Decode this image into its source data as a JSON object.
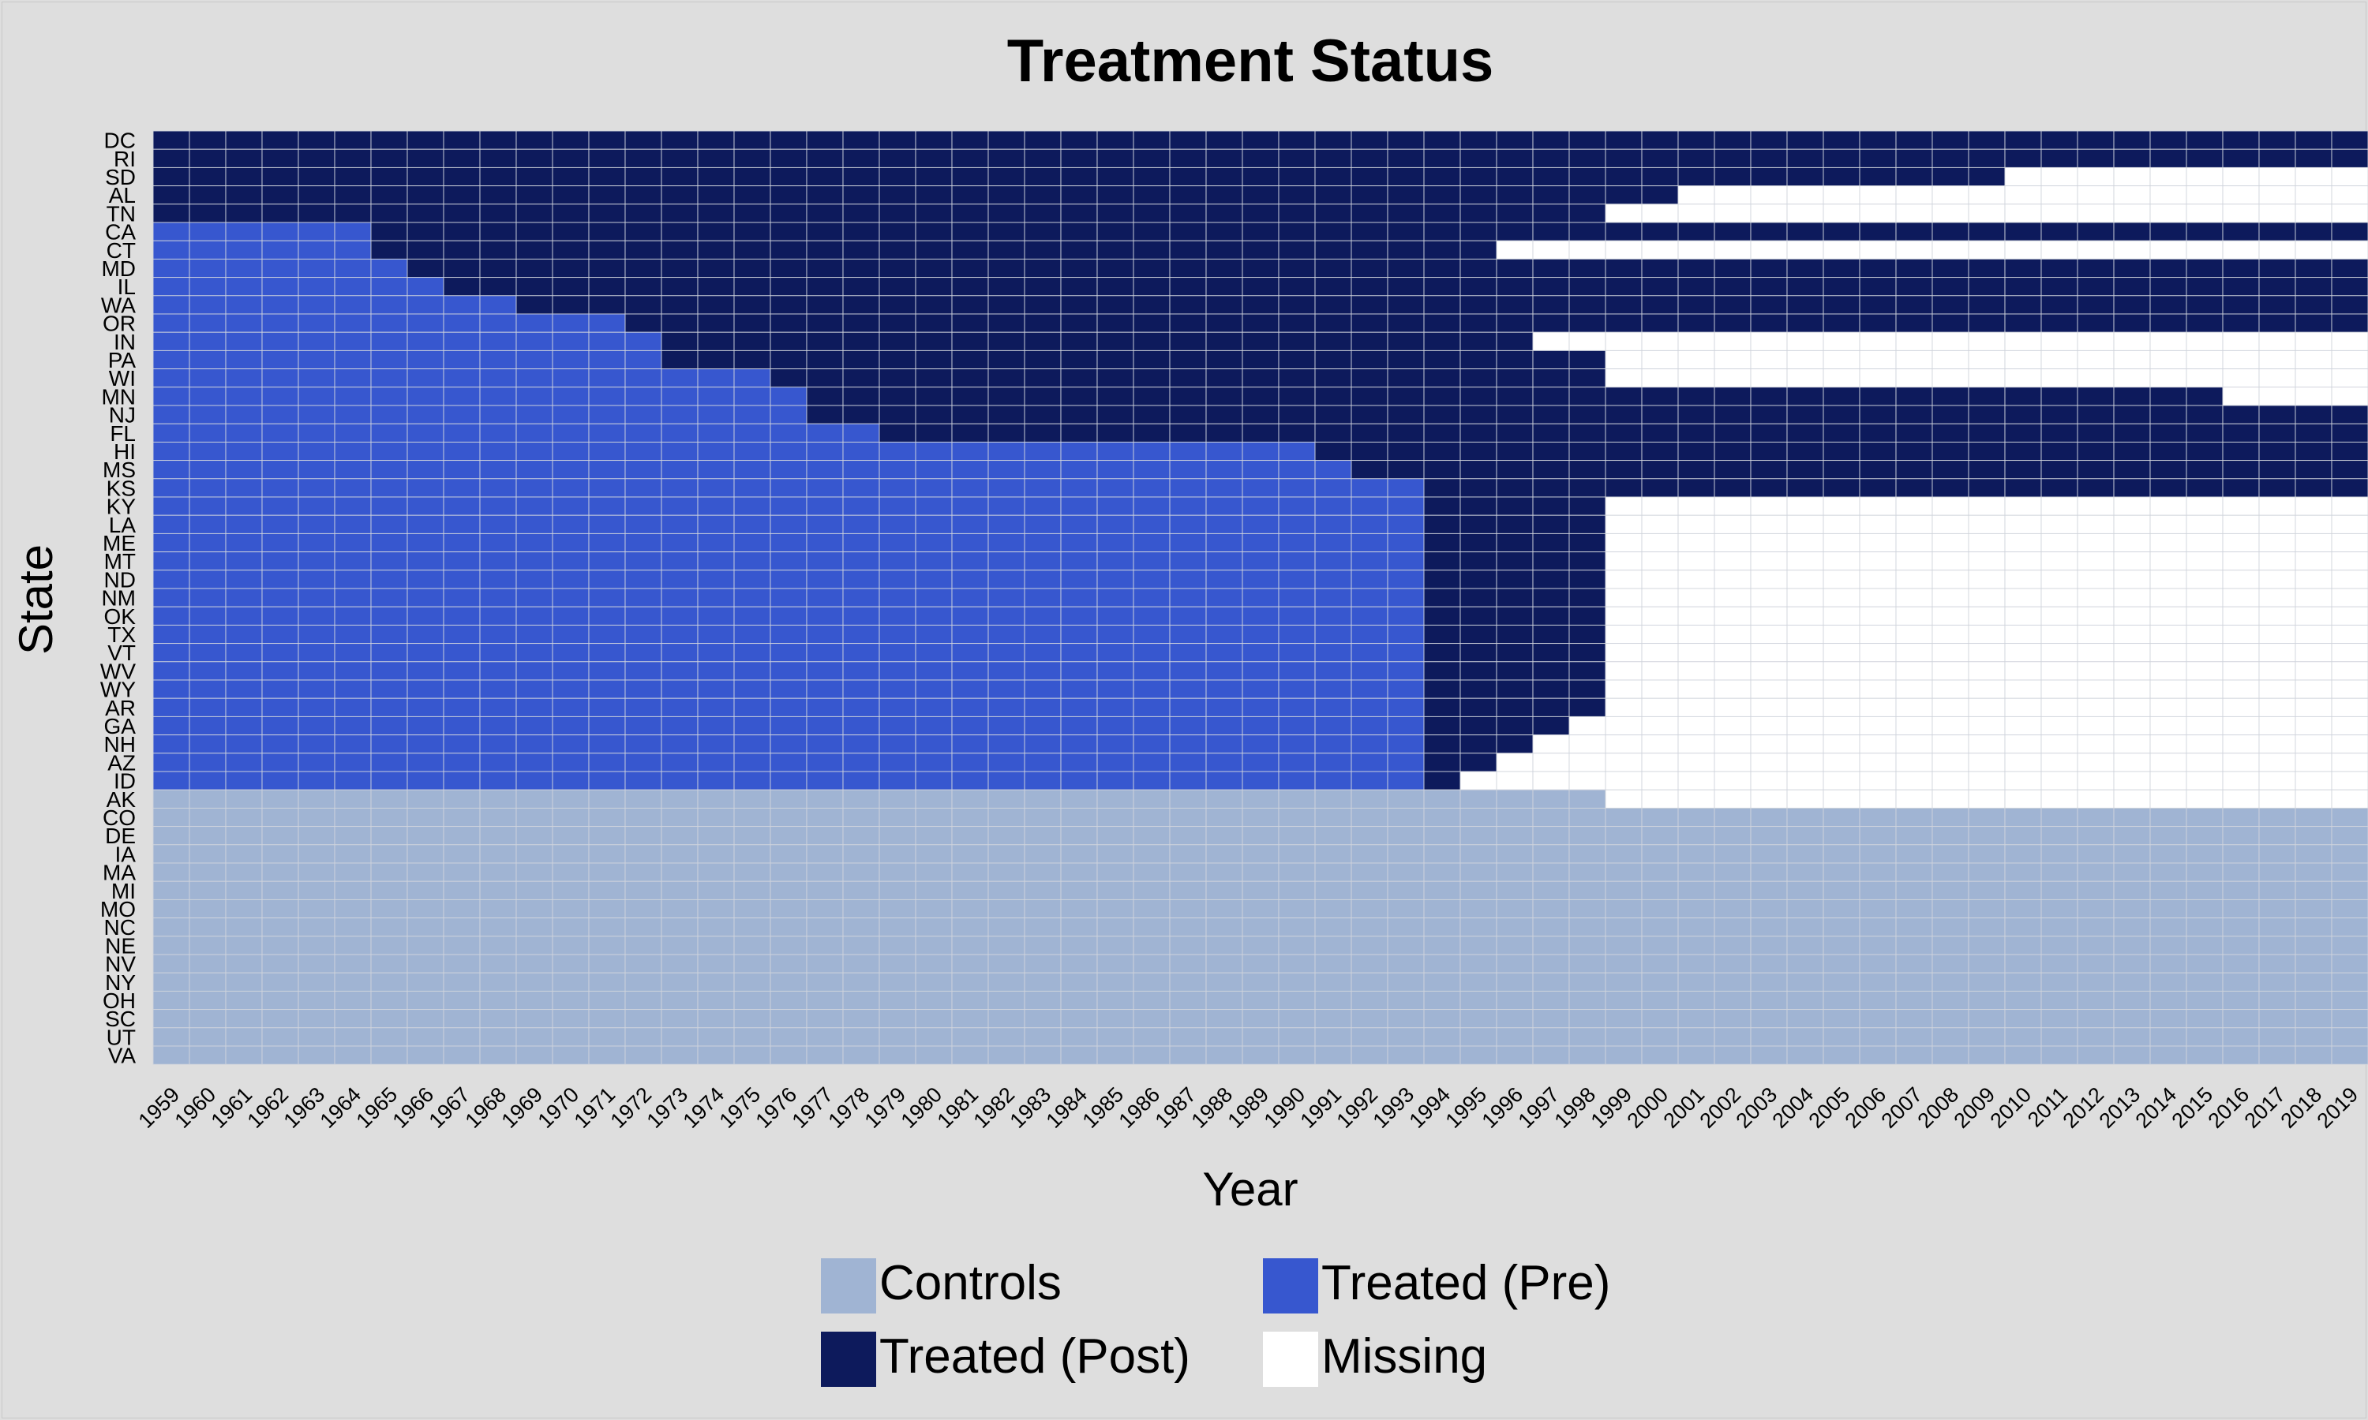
{
  "colors": {
    "controls": "#a0b4d3",
    "treated_pre": "#3757cf",
    "treated_post": "#0d1a5c",
    "missing": "#ffffff",
    "grid": "#d0d4dc",
    "background": "#dedede"
  },
  "chart_data": {
    "type": "heatmap",
    "title": "Treatment Status",
    "xlabel": "Year",
    "ylabel": "State",
    "grid": true,
    "legend_position": "bottom",
    "x_range": [
      1959,
      2019
    ],
    "states": [
      "DC",
      "RI",
      "SD",
      "AL",
      "TN",
      "CA",
      "CT",
      "MD",
      "IL",
      "WA",
      "OR",
      "IN",
      "PA",
      "WI",
      "MN",
      "NJ",
      "FL",
      "HI",
      "MS",
      "KS",
      "KY",
      "LA",
      "ME",
      "MT",
      "ND",
      "NM",
      "OK",
      "TX",
      "VT",
      "WV",
      "WY",
      "AR",
      "GA",
      "NH",
      "AZ",
      "ID",
      "AK",
      "CO",
      "DE",
      "IA",
      "MA",
      "MI",
      "MO",
      "NC",
      "NE",
      "NV",
      "NY",
      "OH",
      "SC",
      "UT",
      "VA"
    ],
    "years": [
      1959,
      1960,
      1961,
      1962,
      1963,
      1964,
      1965,
      1966,
      1967,
      1968,
      1969,
      1970,
      1971,
      1972,
      1973,
      1974,
      1975,
      1976,
      1977,
      1978,
      1979,
      1980,
      1981,
      1982,
      1983,
      1984,
      1985,
      1986,
      1987,
      1988,
      1989,
      1990,
      1991,
      1992,
      1993,
      1994,
      1995,
      1996,
      1997,
      1998,
      1999,
      2000,
      2001,
      2002,
      2003,
      2004,
      2005,
      2006,
      2007,
      2008,
      2009,
      2010,
      2011,
      2012,
      2013,
      2014,
      2015,
      2016,
      2017,
      2018,
      2019
    ],
    "legend": [
      {
        "label": "Controls",
        "status": "controls"
      },
      {
        "label": "Treated (Pre)",
        "status": "treated_pre"
      },
      {
        "label": "Treated (Post)",
        "status": "treated_post"
      },
      {
        "label": "Missing",
        "status": "missing"
      }
    ],
    "status_codes": {
      "0": "missing",
      "1": "controls",
      "2": "treated_pre",
      "3": "treated_post"
    },
    "rows": [
      {
        "state": "DC",
        "treated_from": 1959,
        "last_year": 2019,
        "gaps": []
      },
      {
        "state": "RI",
        "treated_from": 1959,
        "last_year": 2019,
        "gaps": []
      },
      {
        "state": "SD",
        "treated_from": 1959,
        "last_year": 2009,
        "gaps": []
      },
      {
        "state": "AL",
        "treated_from": 1959,
        "last_year": 2000,
        "gaps": []
      },
      {
        "state": "TN",
        "treated_from": 1959,
        "last_year": 1998,
        "gaps": []
      },
      {
        "state": "CA",
        "treated_from": 1965,
        "last_year": 2019,
        "gaps": []
      },
      {
        "state": "CT",
        "treated_from": 1965,
        "last_year": 1995,
        "gaps": []
      },
      {
        "state": "MD",
        "treated_from": 1966,
        "last_year": 2019,
        "gaps": []
      },
      {
        "state": "IL",
        "treated_from": 1967,
        "last_year": 2019,
        "gaps": []
      },
      {
        "state": "WA",
        "treated_from": 1969,
        "last_year": 2019,
        "gaps": []
      },
      {
        "state": "OR",
        "treated_from": 1972,
        "last_year": 2019,
        "gaps": []
      },
      {
        "state": "IN",
        "treated_from": 1973,
        "last_year": 1996,
        "gaps": []
      },
      {
        "state": "PA",
        "treated_from": 1973,
        "last_year": 1998,
        "gaps": []
      },
      {
        "state": "WI",
        "treated_from": 1976,
        "last_year": 1998,
        "gaps": []
      },
      {
        "state": "MN",
        "treated_from": 1977,
        "last_year": 2015,
        "gaps": []
      },
      {
        "state": "NJ",
        "treated_from": 1977,
        "last_year": 2019,
        "gaps": []
      },
      {
        "state": "FL",
        "treated_from": 1979,
        "last_year": 2019,
        "gaps": []
      },
      {
        "state": "HI",
        "treated_from": 1991,
        "last_year": 2019,
        "gaps": []
      },
      {
        "state": "MS",
        "treated_from": 1992,
        "last_year": 2019,
        "gaps": []
      },
      {
        "state": "KS",
        "treated_from": 1994,
        "last_year": 2019,
        "gaps": []
      },
      {
        "state": "KY",
        "treated_from": 1994,
        "last_year": 1998,
        "gaps": []
      },
      {
        "state": "LA",
        "treated_from": 1994,
        "last_year": 1998,
        "gaps": []
      },
      {
        "state": "ME",
        "treated_from": 1994,
        "last_year": 1998,
        "gaps": []
      },
      {
        "state": "MT",
        "treated_from": 1994,
        "last_year": 1998,
        "gaps": []
      },
      {
        "state": "ND",
        "treated_from": 1994,
        "last_year": 1998,
        "gaps": []
      },
      {
        "state": "NM",
        "treated_from": 1994,
        "last_year": 1998,
        "gaps": []
      },
      {
        "state": "OK",
        "treated_from": 1994,
        "last_year": 1998,
        "gaps": []
      },
      {
        "state": "TX",
        "treated_from": 1994,
        "last_year": 1998,
        "gaps": []
      },
      {
        "state": "VT",
        "treated_from": 1994,
        "last_year": 1998,
        "gaps": []
      },
      {
        "state": "WV",
        "treated_from": 1994,
        "last_year": 1998,
        "gaps": []
      },
      {
        "state": "WY",
        "treated_from": 1994,
        "last_year": 1998,
        "gaps": []
      },
      {
        "state": "AR",
        "treated_from": 1994,
        "last_year": 1998,
        "gaps": []
      },
      {
        "state": "GA",
        "treated_from": 1994,
        "last_year": 1997,
        "gaps": []
      },
      {
        "state": "NH",
        "treated_from": 1994,
        "last_year": 1996,
        "gaps": []
      },
      {
        "state": "AZ",
        "treated_from": 1994,
        "last_year": 1995,
        "gaps": []
      },
      {
        "state": "ID",
        "treated_from": 1994,
        "last_year": 1994,
        "gaps": []
      },
      {
        "state": "AK",
        "treated_from": null,
        "last_year": 1998,
        "gaps": []
      },
      {
        "state": "CO",
        "treated_from": null,
        "last_year": 2019,
        "gaps": []
      },
      {
        "state": "DE",
        "treated_from": null,
        "last_year": 2019,
        "gaps": []
      },
      {
        "state": "IA",
        "treated_from": null,
        "last_year": 2019,
        "gaps": []
      },
      {
        "state": "MA",
        "treated_from": null,
        "last_year": 2019,
        "gaps": []
      },
      {
        "state": "MI",
        "treated_from": null,
        "last_year": 2019,
        "gaps": []
      },
      {
        "state": "MO",
        "treated_from": null,
        "last_year": 2019,
        "gaps": []
      },
      {
        "state": "NC",
        "treated_from": null,
        "last_year": 2019,
        "gaps": []
      },
      {
        "state": "NE",
        "treated_from": null,
        "last_year": 2019,
        "gaps": []
      },
      {
        "state": "NV",
        "treated_from": null,
        "last_year": 2019,
        "gaps": []
      },
      {
        "state": "NY",
        "treated_from": null,
        "last_year": 2019,
        "gaps": []
      },
      {
        "state": "OH",
        "treated_from": null,
        "last_year": 2019,
        "gaps": []
      },
      {
        "state": "SC",
        "treated_from": null,
        "last_year": 2019,
        "gaps": []
      },
      {
        "state": "UT",
        "treated_from": null,
        "last_year": 2019,
        "gaps": []
      },
      {
        "state": "VA",
        "treated_from": null,
        "last_year": 2019,
        "gaps": []
      }
    ]
  }
}
